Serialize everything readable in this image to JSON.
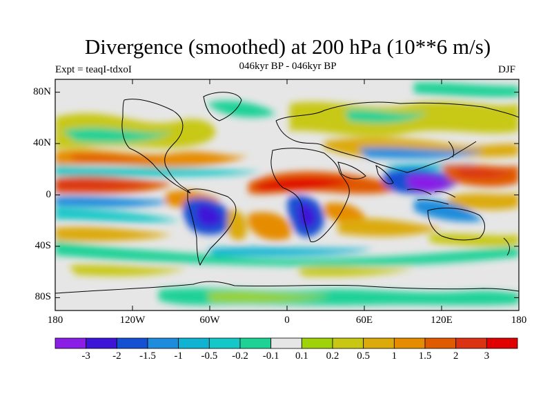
{
  "header": {
    "title": "Divergence (smoothed) at 200 hPa (10**6 m/s)",
    "subtitle": "046kyr BP - 046kyr BP",
    "experiment": "Expt = teaqI-tdxoI",
    "season": "DJF"
  },
  "map": {
    "lat_labels": [
      "80N",
      "40N",
      "0",
      "40S",
      "80S"
    ],
    "lat_values": [
      80,
      40,
      0,
      -40,
      -80
    ],
    "lon_labels": [
      "180",
      "120W",
      "60W",
      "0",
      "60E",
      "120E",
      "180"
    ],
    "lon_values": [
      -180,
      -120,
      -60,
      0,
      60,
      120,
      180
    ],
    "lat_range": [
      -90,
      90
    ],
    "lon_range": [
      -180,
      180
    ]
  },
  "colorbar": {
    "labels": [
      "-3",
      "-2",
      "-1.5",
      "-1",
      "-0.5",
      "-0.2",
      "-0.1",
      "0.1",
      "0.2",
      "0.5",
      "1",
      "1.5",
      "2",
      "3"
    ],
    "colors": [
      "#8a1ee6",
      "#3c14d8",
      "#1450d2",
      "#1e8cdc",
      "#10b4d2",
      "#14c8c8",
      "#1ed296",
      "#e6e6e6",
      "#a0d20a",
      "#c8c814",
      "#dcaa0a",
      "#e68c00",
      "#e05a00",
      "#dc3214",
      "#e00000"
    ]
  },
  "colors": {
    "background": "#ffffff",
    "neutral_fill": "#e6e6e6",
    "coastline": "#000000"
  }
}
